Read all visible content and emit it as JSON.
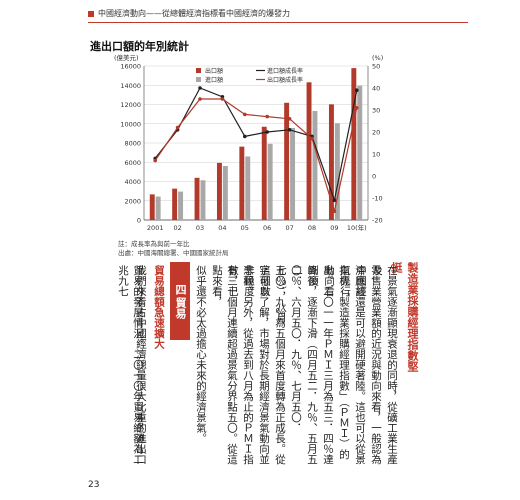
{
  "header": {
    "text": "中國經濟動向——從總體經濟指標看中國經濟的爆發力"
  },
  "chart_title": "進出口額的年別統計",
  "chart_data": {
    "type": "bar",
    "categories": [
      "2001",
      "02",
      "03",
      "04",
      "05",
      "06",
      "07",
      "08",
      "09",
      "10"
    ],
    "x_suffix_last": "(年)",
    "left_axis": {
      "unit": "(億美元)",
      "ylim": [
        0,
        16000
      ],
      "ticks": [
        "0",
        "2000",
        "4000",
        "6000",
        "8000",
        "10000",
        "12000",
        "14000",
        "16000"
      ]
    },
    "right_axis": {
      "unit": "(%)",
      "ylim": [
        -20,
        50
      ],
      "ticks": [
        "-20",
        "-10",
        "0",
        "10",
        "20",
        "30",
        "40",
        "50"
      ]
    },
    "series": [
      {
        "name": "出口額",
        "kind": "bar",
        "axis": "left",
        "values": [
          2660,
          3256,
          4383,
          5933,
          7620,
          9689,
          12178,
          14307,
          12016,
          15779
        ]
      },
      {
        "name": "進口額",
        "kind": "bar",
        "axis": "left",
        "values": [
          2436,
          2952,
          4128,
          5612,
          6600,
          7915,
          9560,
          11326,
          10059,
          13948
        ]
      },
      {
        "name": "進口額成長率",
        "kind": "line",
        "axis": "right",
        "values": [
          8,
          21,
          40,
          36,
          18,
          20,
          21,
          18,
          -11,
          39
        ]
      },
      {
        "name": "出口額成長率",
        "kind": "line",
        "axis": "right",
        "values": [
          7,
          22,
          35,
          35,
          28,
          27,
          26,
          17,
          -16,
          31
        ]
      }
    ]
  },
  "notes": {
    "line1": "註：成長率為與前一年比",
    "line2": "出處：中國海關總署、中國國家統計局"
  },
  "body_text": {
    "heading": "製造業採購經理指數堅挺",
    "col1": "在景氣逐漸顯現衰退的同時，從礦工業生產及",
    "col2": "零售業營業額的近況與動向來看，一般認為中國經",
    "col3": "濟應該還是可以避開硬著陸。這也可以從景氣先行",
    "col4": "指標「製造業採購經理指數」（ＰＭＩ）的動向看",
    "col5": "出。二〇一一年ＰＭＩ三月為五三．四％達到頂",
    "col6": "峰後，逐漸下滑（四月五二．九％、五月五二．",
    "col7": "〇％、六月五〇．九％、七月五〇．七％），八月",
    "col8": "五〇．九％為五個月來首度轉為正成長。從這個數",
    "col9": "字可以了解，市場對於長期經濟景氣動向並非極度",
    "col10": "悲觀。另外，從過去到八月為止的ＰＭＩ指數，已",
    "col11": "有三十個月連續超過景氣分界點五〇。從這點來看，",
    "col12": "似乎還不必太過擔心未來的經濟景氣。",
    "section_number": "四",
    "section_title": "貿易",
    "sub_heading": "貿易總額急速擴大",
    "col13": "我們來看占中國經濟總量很大比重的進出口",
    "col14": "貿易的發展情況。二〇一〇年貿易總額為二兆九七"
  },
  "page_number": "23",
  "colors": {
    "accent": "#c0392b",
    "export_bar": "#b23a2a",
    "import_bar": "#a8a8a8"
  }
}
